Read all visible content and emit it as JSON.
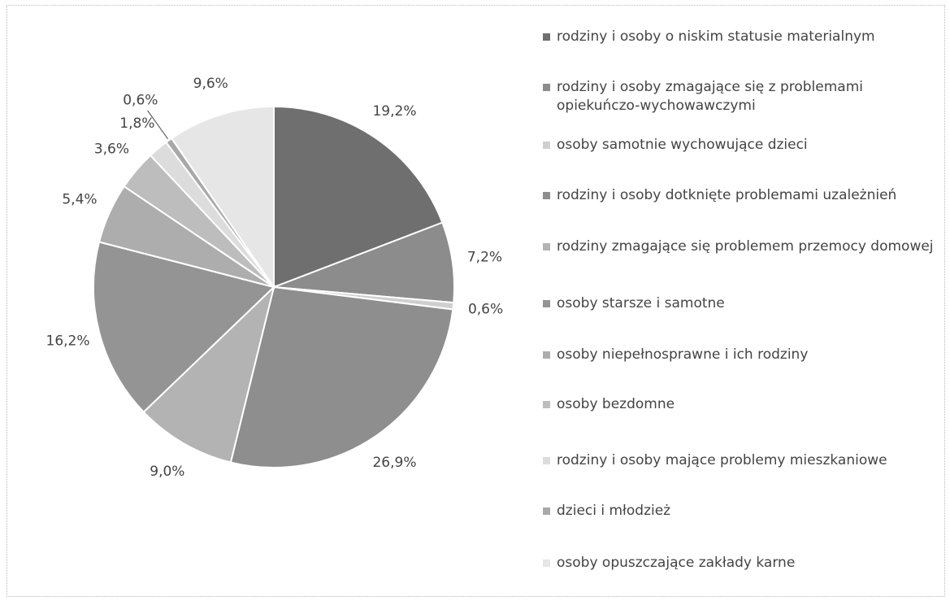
{
  "chart_data": {
    "type": "pie",
    "categories": [
      "rodziny i osoby o niskim statusie materialnym",
      "rodziny i osoby zmagające się z problemami opiekuńczo-wychowawczymi",
      "osoby samotnie wychowujące dzieci",
      "rodziny i osoby dotknięte problemami uzależnień",
      "rodziny zmagające się problemem przemocy domowej",
      "osoby starsze i samotne",
      "osoby niepełnosprawne i ich rodziny",
      "osoby bezdomne",
      "rodziny i osoby mające problemy mieszkaniowe",
      "dzieci i młodzież",
      "osoby opuszczające zakłady karne"
    ],
    "values": [
      19.2,
      7.2,
      0.6,
      26.9,
      9.0,
      16.2,
      5.4,
      3.6,
      1.8,
      0.6,
      9.6
    ],
    "value_labels": [
      "19,2%",
      "7,2%",
      "0,6%",
      "26,9%",
      "9,0%",
      "16,2%",
      "5,4%",
      "3,6%",
      "1,8%",
      "0,6%",
      "9,6%"
    ],
    "colors": [
      "#6f6f6f",
      "#8c8c8c",
      "#cfcfcf",
      "#8e8e8e",
      "#b3b3b3",
      "#949494",
      "#adadad",
      "#bdbdbd",
      "#dcdcdc",
      "#a8a8a8",
      "#e6e6e6"
    ],
    "legend": "right"
  }
}
